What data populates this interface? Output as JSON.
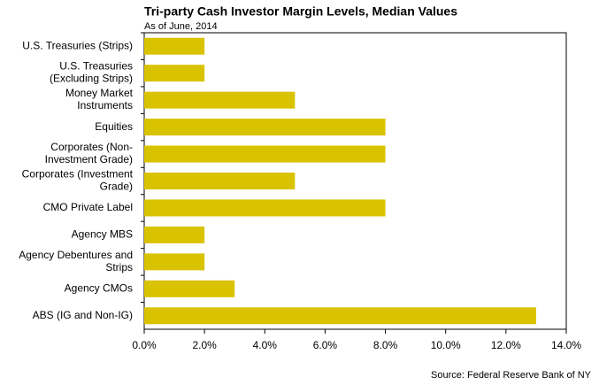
{
  "chart_data": {
    "type": "barh",
    "title": "Tri-party Cash Investor Margin Levels, Median Values",
    "subtitle": "As of June, 2014",
    "source": "Source: Federal Reserve Bank of NY",
    "categories": [
      "U.S. Treasuries (Strips)",
      "U.S. Treasuries\n(Excluding Strips)",
      "Money Market\nInstruments",
      "Equities",
      "Corporates (Non-\nInvestment Grade)",
      "Corporates (Investment\nGrade)",
      "CMO Private Label",
      "Agency MBS",
      "Agency Debentures and\nStrips",
      "Agency CMOs",
      "ABS (IG and Non-IG)"
    ],
    "values": [
      2,
      2,
      5,
      8,
      8,
      5,
      8,
      2,
      2,
      3,
      13
    ],
    "color": "#d9c300",
    "xlim": [
      0,
      14
    ],
    "xticks": [
      {
        "value": 0,
        "label": "0.0%"
      },
      {
        "value": 2,
        "label": "2.0%"
      },
      {
        "value": 4,
        "label": "4.0%"
      },
      {
        "value": 6,
        "label": "6.0%"
      },
      {
        "value": 8,
        "label": "8.0%"
      },
      {
        "value": 10,
        "label": "10.0%"
      },
      {
        "value": 12,
        "label": "12.0%"
      },
      {
        "value": 14,
        "label": "14.0%"
      }
    ]
  }
}
